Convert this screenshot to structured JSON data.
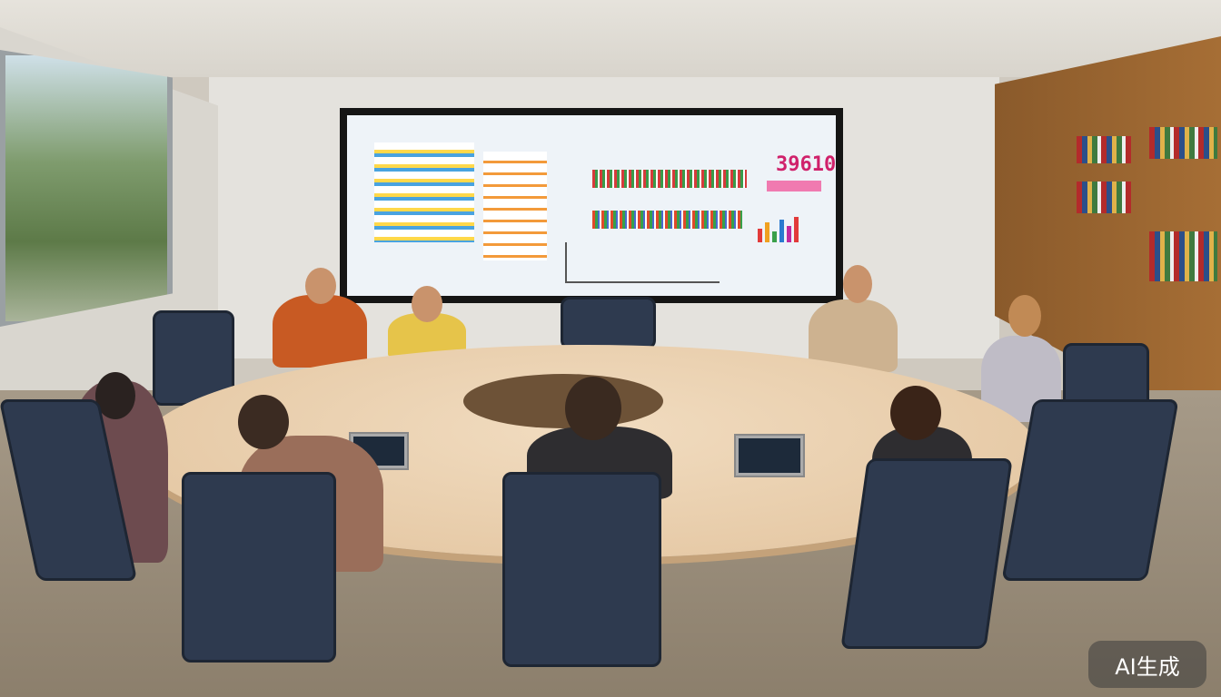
{
  "screen": {
    "headline_number": "39610"
  },
  "watermark": {
    "text": "AI生成"
  },
  "colors": {
    "accent_screen": "#d0216b",
    "table": "#e8cba6",
    "chairs": "#2e3a4f"
  }
}
